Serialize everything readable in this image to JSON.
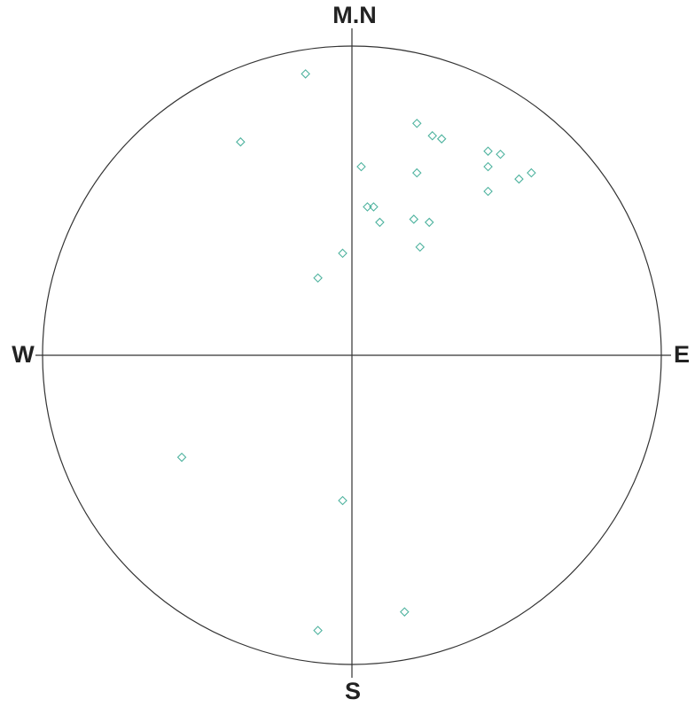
{
  "chart_data": {
    "type": "scatter",
    "direction_labels": {
      "north": "M.N",
      "south": "S",
      "west": "W",
      "east": "E"
    },
    "xlim": [
      -1,
      1
    ],
    "ylim": [
      -1,
      1
    ],
    "color": "#4fb39f",
    "x": [
      -0.15,
      -0.36,
      0.21,
      0.26,
      0.29,
      0.03,
      0.21,
      0.44,
      0.48,
      0.44,
      0.54,
      0.58,
      0.44,
      0.05,
      0.07,
      0.09,
      0.2,
      0.25,
      0.22,
      -0.03,
      -0.11,
      -0.55,
      -0.03,
      0.17,
      -0.11
    ],
    "values": [
      0.91,
      0.69,
      0.75,
      0.71,
      0.7,
      0.61,
      0.59,
      0.66,
      0.65,
      0.61,
      0.57,
      0.59,
      0.53,
      0.48,
      0.48,
      0.43,
      0.44,
      0.43,
      0.35,
      0.33,
      0.25,
      -0.33,
      -0.47,
      -0.83,
      -0.89
    ]
  }
}
